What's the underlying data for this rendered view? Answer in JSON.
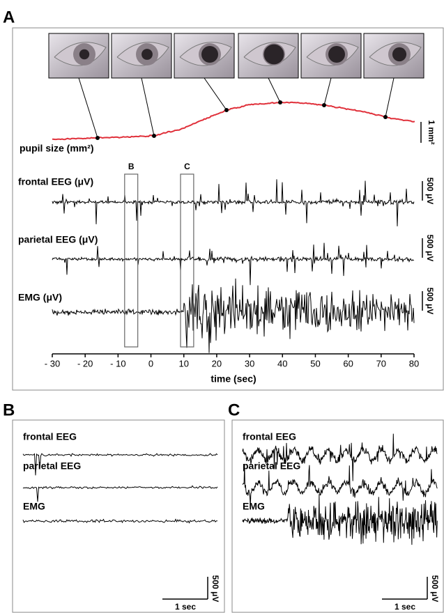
{
  "panel_a": {
    "label": "A",
    "pupil_label": "pupil size (mm²)",
    "pupil_scale": "1 mm²",
    "traces": [
      {
        "label": "frontal EEG (μV)",
        "scale": "500 μV"
      },
      {
        "label": "parietal EEG (μV)",
        "scale": "500 μV"
      },
      {
        "label": "EMG (μV)",
        "scale": "500 μV"
      }
    ],
    "windows": [
      {
        "label": "B",
        "start": -8,
        "end": -4
      },
      {
        "label": "C",
        "start": 9,
        "end": 13
      }
    ],
    "x_axis": {
      "title": "time (sec)",
      "xlim": [
        -30,
        80
      ],
      "xticks": [
        {
          "value": -30,
          "label": "- 30"
        },
        {
          "value": -20,
          "label": "- 20"
        },
        {
          "value": -10,
          "label": "- 10"
        },
        0,
        10,
        20,
        30,
        40,
        50,
        60,
        70,
        80
      ]
    }
  },
  "panel_b": {
    "label": "B",
    "traces": [
      "frontal EEG",
      "parietal EEG",
      "EMG"
    ],
    "time_scale": "1 sec",
    "amp_scale": "500 μV"
  },
  "panel_c": {
    "label": "C",
    "traces": [
      "frontal EEG",
      "parietal EEG",
      "EMG"
    ],
    "time_scale": "1 sec",
    "amp_scale": "500 μV"
  }
}
